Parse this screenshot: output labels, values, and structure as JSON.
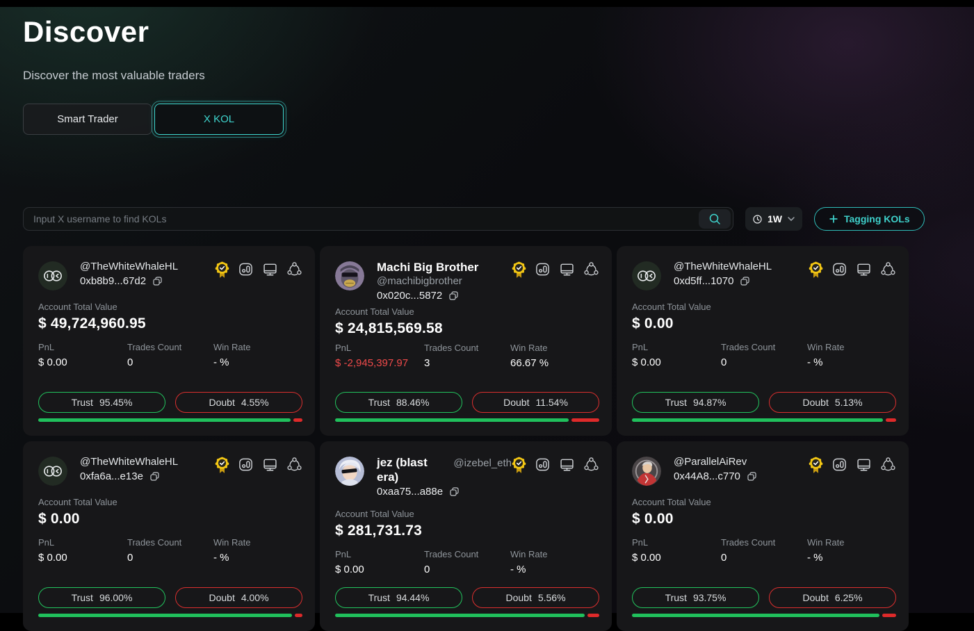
{
  "page": {
    "title": "Discover",
    "subtitle": "Discover the most valuable traders"
  },
  "tabs": [
    {
      "label": "Smart Trader",
      "active": false
    },
    {
      "label": "X KOL",
      "active": true
    }
  ],
  "search": {
    "placeholder": "Input X username to find KOLs"
  },
  "timeframe": {
    "label": "1W"
  },
  "tagging_button": {
    "label": "Tagging KOLs"
  },
  "labels": {
    "account_total_value": "Account Total Value",
    "pnl": "PnL",
    "trades_count": "Trades Count",
    "win_rate": "Win Rate",
    "trust": "Trust",
    "doubt": "Doubt"
  },
  "colors": {
    "accent_teal": "#3fd6cf",
    "trust_green": "#22c55e",
    "doubt_red": "#dc2f2f",
    "negative_pnl": "#f04a4a",
    "badge_yellow": "#f2c614",
    "card_bg": "#171719"
  },
  "cards": [
    {
      "handle": "@TheWhiteWhaleHL",
      "address": "0xb8b9...67d2",
      "account_total_value": "$ 49,724,960.95",
      "pnl": "$ 0.00",
      "pnl_negative": false,
      "trades_count": "0",
      "win_rate": "- %",
      "trust_pct": "95.45%",
      "doubt_pct": "4.55%",
      "trust_ratio": 95.45,
      "avatar": "whale"
    },
    {
      "name": "Machi Big Brother",
      "handle": "@machibigbrother",
      "address": "0x020c...5872",
      "account_total_value": "$ 24,815,569.58",
      "pnl": "$ -2,945,397.97",
      "pnl_negative": true,
      "trades_count": "3",
      "win_rate": "66.67 %",
      "trust_pct": "88.46%",
      "doubt_pct": "11.54%",
      "trust_ratio": 88.46,
      "avatar": "ape"
    },
    {
      "handle": "@TheWhiteWhaleHL",
      "address": "0xd5ff...1070",
      "account_total_value": "$ 0.00",
      "pnl": "$ 0.00",
      "pnl_negative": false,
      "trades_count": "0",
      "win_rate": "- %",
      "trust_pct": "94.87%",
      "doubt_pct": "5.13%",
      "trust_ratio": 94.87,
      "avatar": "whale"
    },
    {
      "handle": "@TheWhiteWhaleHL",
      "address": "0xfa6a...e13e",
      "account_total_value": "$ 0.00",
      "pnl": "$ 0.00",
      "pnl_negative": false,
      "trades_count": "0",
      "win_rate": "- %",
      "trust_pct": "96.00%",
      "doubt_pct": "4.00%",
      "trust_ratio": 96.0,
      "avatar": "whale"
    },
    {
      "name": "jez (blast era)",
      "handle": "@izebel_eth",
      "address": "0xaa75...a88e",
      "account_total_value": "$ 281,731.73",
      "pnl": "$ 0.00",
      "pnl_negative": false,
      "trades_count": "0",
      "win_rate": "- %",
      "trust_pct": "94.44%",
      "doubt_pct": "5.56%",
      "trust_ratio": 94.44,
      "avatar": "anime"
    },
    {
      "handle": "@ParallelAiRev",
      "address": "0x44A8...c770",
      "account_total_value": "$ 0.00",
      "pnl": "$ 0.00",
      "pnl_negative": false,
      "trades_count": "0",
      "win_rate": "- %",
      "trust_pct": "93.75%",
      "doubt_pct": "6.25%",
      "trust_ratio": 93.75,
      "avatar": "parallel"
    }
  ]
}
